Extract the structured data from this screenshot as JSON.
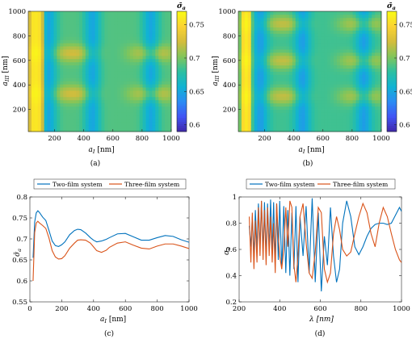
{
  "chart_data": [
    {
      "panel": "(a)",
      "type": "heatmap",
      "xlabel": "a_I [nm]",
      "ylabel": "a_III [nm]",
      "xlim": [
        20,
        1000
      ],
      "ylim": [
        20,
        1000
      ],
      "xticks": [
        200,
        400,
        600,
        800,
        1000
      ],
      "yticks": [
        200,
        400,
        600,
        800,
        1000
      ],
      "colorbar": {
        "label": "σ̄_a",
        "min": 0.59,
        "max": 0.77,
        "ticks": [
          0.6,
          0.65,
          0.7,
          0.75
        ],
        "colormap": [
          "#3e26a8",
          "#4154f4",
          "#2b8cf4",
          "#10b3d3",
          "#2cc0a1",
          "#82c55a",
          "#d4bc3c",
          "#fbd333",
          "#f9fb15"
        ]
      },
      "features": {
        "bright_band_x": [
          30,
          120
        ],
        "bright_band_value": 0.76,
        "blue_columns_x": [
          160,
          460,
          860
        ],
        "light_rows_y": [
          330,
          660
        ],
        "row_peak_value": 0.725,
        "background_value": 0.69,
        "minimum_value": 0.65
      }
    },
    {
      "panel": "(b)",
      "type": "heatmap",
      "xlabel": "a_I [nm]",
      "ylabel": "a_III [nm]",
      "xlim": [
        20,
        1000
      ],
      "ylim": [
        20,
        1000
      ],
      "xticks": [
        200,
        400,
        600,
        800,
        1000
      ],
      "yticks": [
        200,
        400,
        600,
        800,
        1000
      ],
      "colorbar": {
        "label": "σ̄_a",
        "min": 0.59,
        "max": 0.77,
        "ticks": [
          0.6,
          0.65,
          0.7,
          0.75
        ],
        "colormap": [
          "#3e26a8",
          "#4154f4",
          "#2b8cf4",
          "#10b3d3",
          "#2cc0a1",
          "#82c55a",
          "#d4bc3c",
          "#fbd333",
          "#f9fb15"
        ]
      },
      "features": {
        "bright_band_x": [
          40,
          110
        ],
        "bright_band_value": 0.76,
        "blue_columns_x": [
          170,
          460,
          880
        ],
        "light_rows_y": [
          310,
          600,
          900
        ],
        "row_peak_value": 0.72,
        "background_value": 0.685,
        "minimum_value": 0.645
      }
    },
    {
      "panel": "(c)",
      "type": "line",
      "xlabel": "a_I [nm]",
      "ylabel": "σ̄_a",
      "xlim": [
        0,
        1000
      ],
      "ylim": [
        0.55,
        0.8
      ],
      "xticks": [
        0,
        200,
        400,
        600,
        800,
        1000
      ],
      "yticks": [
        0.55,
        0.6,
        0.65,
        0.7,
        0.75,
        0.8
      ],
      "legend": "top",
      "series": [
        {
          "name": "Two-film system",
          "color": "#0072bd",
          "x": [
            20,
            30,
            40,
            50,
            60,
            80,
            100,
            120,
            140,
            160,
            180,
            200,
            220,
            250,
            280,
            300,
            320,
            350,
            380,
            400,
            420,
            450,
            480,
            500,
            550,
            600,
            650,
            700,
            750,
            800,
            850,
            900,
            950,
            1000
          ],
          "y": [
            0.655,
            0.74,
            0.762,
            0.767,
            0.763,
            0.752,
            0.744,
            0.72,
            0.695,
            0.684,
            0.682,
            0.686,
            0.693,
            0.71,
            0.72,
            0.723,
            0.722,
            0.714,
            0.703,
            0.697,
            0.693,
            0.695,
            0.699,
            0.703,
            0.712,
            0.713,
            0.705,
            0.697,
            0.697,
            0.703,
            0.708,
            0.706,
            0.698,
            0.692
          ]
        },
        {
          "name": "Three-film system",
          "color": "#d95319",
          "x": [
            20,
            30,
            40,
            50,
            60,
            80,
            100,
            120,
            140,
            160,
            180,
            200,
            220,
            250,
            280,
            300,
            320,
            350,
            380,
            400,
            420,
            450,
            480,
            500,
            550,
            600,
            650,
            700,
            750,
            800,
            850,
            900,
            950,
            1000
          ],
          "y": [
            0.6,
            0.715,
            0.738,
            0.742,
            0.738,
            0.732,
            0.725,
            0.702,
            0.672,
            0.657,
            0.652,
            0.653,
            0.66,
            0.678,
            0.69,
            0.697,
            0.698,
            0.697,
            0.69,
            0.681,
            0.672,
            0.668,
            0.673,
            0.68,
            0.69,
            0.693,
            0.685,
            0.678,
            0.676,
            0.683,
            0.688,
            0.688,
            0.683,
            0.677
          ]
        }
      ]
    },
    {
      "panel": "(d)",
      "type": "line",
      "xlabel": "λ [nm]",
      "ylabel": "σ_a",
      "xlim": [
        200,
        1000
      ],
      "ylim": [
        0.2,
        1.0
      ],
      "xticks": [
        200,
        400,
        600,
        800,
        1000
      ],
      "yticks": [
        0.2,
        0.4,
        0.6,
        0.8,
        1.0
      ],
      "legend": "top",
      "series": [
        {
          "name": "Two-film system",
          "color": "#0072bd",
          "x": [
            250,
            258,
            265,
            273,
            280,
            288,
            295,
            303,
            310,
            318,
            325,
            333,
            340,
            348,
            355,
            363,
            370,
            378,
            385,
            393,
            400,
            410,
            420,
            430,
            440,
            450,
            460,
            470,
            480,
            490,
            500,
            515,
            530,
            545,
            560,
            575,
            590,
            605,
            620,
            635,
            650,
            665,
            680,
            695,
            710,
            730,
            750,
            770,
            790,
            810,
            830,
            850,
            870,
            890,
            910,
            930,
            950,
            970,
            990,
            1000
          ],
          "y": [
            0.78,
            0.62,
            0.85,
            0.55,
            0.9,
            0.6,
            0.95,
            0.62,
            0.97,
            0.58,
            0.96,
            0.55,
            0.95,
            0.6,
            0.98,
            0.58,
            0.96,
            0.5,
            0.95,
            0.52,
            0.97,
            0.45,
            0.93,
            0.42,
            0.9,
            0.4,
            0.88,
            0.45,
            0.93,
            0.35,
            0.85,
            0.55,
            0.93,
            0.42,
            0.99,
            0.35,
            0.88,
            0.28,
            0.7,
            0.48,
            0.92,
            0.55,
            0.35,
            0.45,
            0.8,
            0.97,
            0.85,
            0.62,
            0.56,
            0.62,
            0.7,
            0.76,
            0.79,
            0.8,
            0.8,
            0.79,
            0.8,
            0.86,
            0.92,
            0.89
          ]
        },
        {
          "name": "Three-film system",
          "color": "#d95319",
          "x": [
            250,
            258,
            265,
            273,
            280,
            288,
            295,
            303,
            310,
            318,
            325,
            333,
            340,
            348,
            355,
            363,
            370,
            378,
            385,
            393,
            400,
            410,
            420,
            430,
            440,
            450,
            460,
            470,
            480,
            490,
            500,
            515,
            530,
            545,
            560,
            575,
            590,
            605,
            620,
            635,
            650,
            665,
            680,
            695,
            710,
            730,
            750,
            770,
            790,
            810,
            830,
            850,
            870,
            890,
            910,
            930,
            950,
            970,
            990,
            1000
          ],
          "y": [
            0.85,
            0.5,
            0.88,
            0.45,
            0.82,
            0.5,
            0.92,
            0.55,
            0.97,
            0.52,
            0.9,
            0.48,
            0.92,
            0.55,
            0.85,
            0.5,
            0.8,
            0.42,
            0.95,
            0.7,
            0.55,
            0.45,
            0.6,
            0.92,
            0.62,
            0.97,
            0.92,
            0.48,
            0.35,
            0.55,
            0.85,
            0.95,
            0.65,
            0.42,
            0.38,
            0.58,
            0.92,
            0.88,
            0.45,
            0.35,
            0.42,
            0.72,
            0.85,
            0.75,
            0.6,
            0.55,
            0.58,
            0.72,
            0.85,
            0.95,
            0.88,
            0.72,
            0.62,
            0.8,
            0.92,
            0.85,
            0.72,
            0.6,
            0.52,
            0.5
          ]
        }
      ]
    }
  ]
}
